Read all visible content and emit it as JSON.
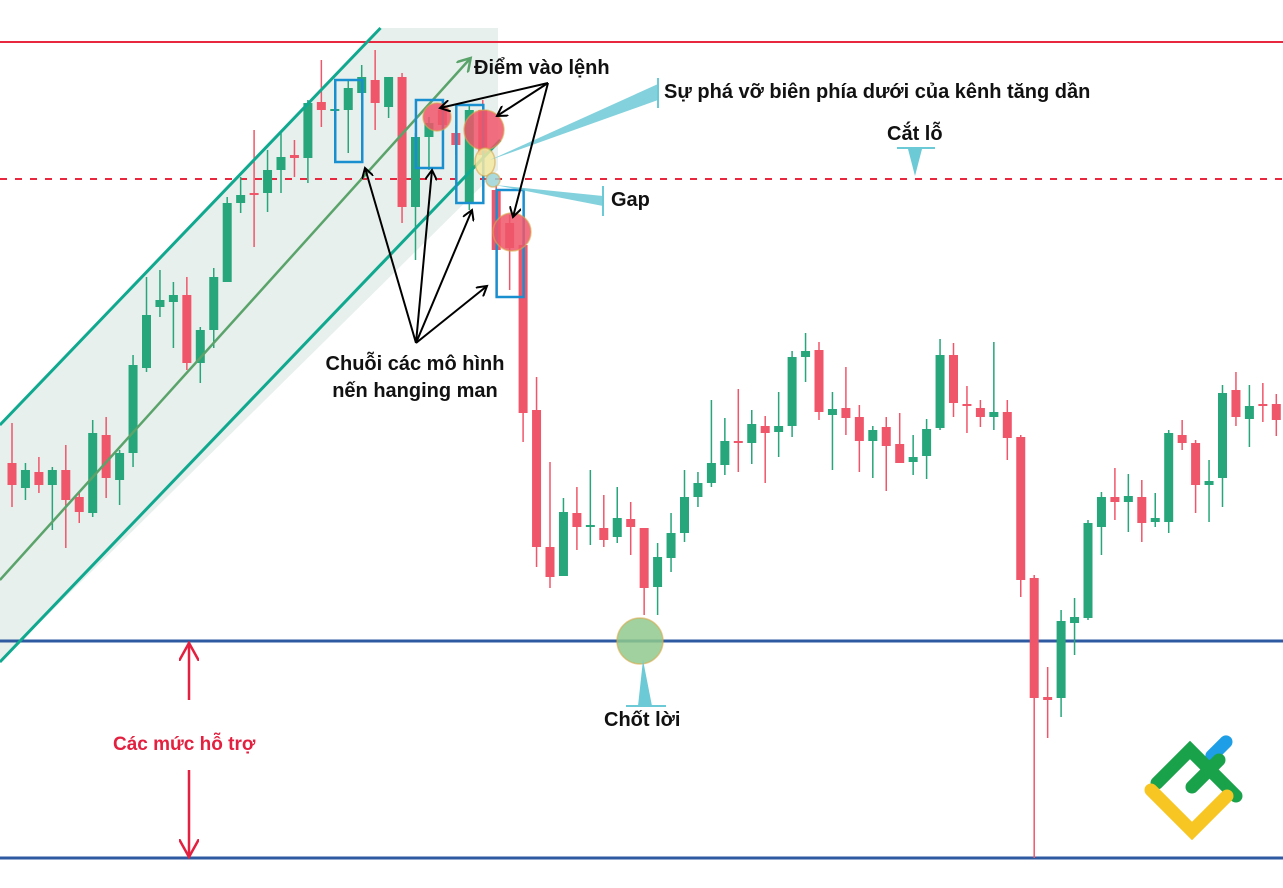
{
  "chart_data": {
    "type": "candlestick",
    "title": "",
    "xlabel": "",
    "ylabel": "",
    "ylim": [
      11.2,
      100
    ],
    "grid": false,
    "colors": {
      "up": "#26a67a",
      "down": "#f0566a",
      "channel": "#10a98f",
      "channel_mid": "#5aa36a",
      "channel_fill": "#e7f0ed",
      "resistance": "#e8283e",
      "support": "#2d5aa0",
      "box": "#1a8fd0",
      "callout": "#6cc9d6"
    },
    "candles_ohlc": [
      [
        53.7,
        57.7,
        49.3,
        51.5
      ],
      [
        51.2,
        53.7,
        50.0,
        53.0
      ],
      [
        52.8,
        54.3,
        50.7,
        51.5
      ],
      [
        51.5,
        53.3,
        47.0,
        53.0
      ],
      [
        53.0,
        55.5,
        45.2,
        50.0
      ],
      [
        50.3,
        50.7,
        47.7,
        48.8
      ],
      [
        48.7,
        58.0,
        48.3,
        56.7
      ],
      [
        56.5,
        58.3,
        50.2,
        52.2
      ],
      [
        52.0,
        55.0,
        49.5,
        54.7
      ],
      [
        54.7,
        64.5,
        53.3,
        63.5
      ],
      [
        63.2,
        72.3,
        62.8,
        68.5
      ],
      [
        69.3,
        73.0,
        68.3,
        70.0
      ],
      [
        69.8,
        71.8,
        65.2,
        70.5
      ],
      [
        70.5,
        72.3,
        63.0,
        63.7
      ],
      [
        63.7,
        67.3,
        61.7,
        67.0
      ],
      [
        67.0,
        73.2,
        65.2,
        72.3
      ],
      [
        71.8,
        80.3,
        71.8,
        79.7
      ],
      [
        79.7,
        82.3,
        78.7,
        80.5
      ],
      [
        80.7,
        87.0,
        75.3,
        80.5
      ],
      [
        80.7,
        85.0,
        78.8,
        83.0
      ],
      [
        83.0,
        86.7,
        80.7,
        84.3
      ],
      [
        84.5,
        86.0,
        82.3,
        84.2
      ],
      [
        84.2,
        90.0,
        81.7,
        89.7
      ],
      [
        89.8,
        94.0,
        87.3,
        89.0
      ],
      [
        89.0,
        89.5,
        88.5,
        89.1
      ],
      [
        89.0,
        92.0,
        84.7,
        91.2
      ],
      [
        90.7,
        93.5,
        90.0,
        92.3
      ],
      [
        92.0,
        95.0,
        87.0,
        89.7
      ],
      [
        89.3,
        92.3,
        88.2,
        92.3
      ],
      [
        92.3,
        92.7,
        77.7,
        79.3
      ],
      [
        79.3,
        86.7,
        74.0,
        86.3
      ],
      [
        86.3,
        88.3,
        83.0,
        87.7
      ],
      [
        89.0,
        90.0,
        87.5,
        87.5
      ],
      [
        86.7,
        87.5,
        84.5,
        85.5
      ],
      [
        79.7,
        89.5,
        79.0,
        89.0
      ],
      [
        89.0,
        90.0,
        83.0,
        84.5
      ],
      [
        81.0,
        81.5,
        70.3,
        75.0
      ],
      [
        77.7,
        78.5,
        71.0,
        75.2
      ],
      [
        75.5,
        76.0,
        55.8,
        58.7
      ],
      [
        59.0,
        62.3,
        43.3,
        45.3
      ],
      [
        45.3,
        53.8,
        41.2,
        42.3
      ],
      [
        42.4,
        50.2,
        42.4,
        48.8
      ],
      [
        48.7,
        51.3,
        45.0,
        47.3
      ],
      [
        47.4,
        53.0,
        45.5,
        47.5
      ],
      [
        47.2,
        50.5,
        45.3,
        46.0
      ],
      [
        46.3,
        51.3,
        45.7,
        48.2
      ],
      [
        48.1,
        49.8,
        44.5,
        47.3
      ],
      [
        47.2,
        47.2,
        38.5,
        41.2
      ],
      [
        41.3,
        45.7,
        38.5,
        44.3
      ],
      [
        44.2,
        48.7,
        42.8,
        46.7
      ],
      [
        46.7,
        53.0,
        45.8,
        50.3
      ],
      [
        50.3,
        52.8,
        49.3,
        51.7
      ],
      [
        51.7,
        60.0,
        51.3,
        53.7
      ],
      [
        53.5,
        58.2,
        52.5,
        55.9
      ],
      [
        55.9,
        61.1,
        52.8,
        55.7
      ],
      [
        55.7,
        59.0,
        53.6,
        57.6
      ],
      [
        57.4,
        58.4,
        51.7,
        56.7
      ],
      [
        56.8,
        60.8,
        54.3,
        57.4
      ],
      [
        57.4,
        64.9,
        56.3,
        64.3
      ],
      [
        64.3,
        66.7,
        61.8,
        64.9
      ],
      [
        65.0,
        65.8,
        58.0,
        58.8
      ],
      [
        58.5,
        60.8,
        53.0,
        59.1
      ],
      [
        59.2,
        63.3,
        56.5,
        58.2
      ],
      [
        58.3,
        59.5,
        52.8,
        55.9
      ],
      [
        55.9,
        57.4,
        52.2,
        57.0
      ],
      [
        57.3,
        58.3,
        50.9,
        55.4
      ],
      [
        55.6,
        58.7,
        53.7,
        53.7
      ],
      [
        53.8,
        56.5,
        52.5,
        54.3
      ],
      [
        54.4,
        58.1,
        52.1,
        57.1
      ],
      [
        57.2,
        66.1,
        57.0,
        64.5
      ],
      [
        64.5,
        65.7,
        58.3,
        59.7
      ],
      [
        59.6,
        61.4,
        56.7,
        59.4
      ],
      [
        59.2,
        60.0,
        57.3,
        58.3
      ],
      [
        58.3,
        65.8,
        57.0,
        58.8
      ],
      [
        58.8,
        60.0,
        54.0,
        56.2
      ],
      [
        56.3,
        56.5,
        40.3,
        42.0
      ],
      [
        42.2,
        42.5,
        14.2,
        30.2
      ],
      [
        30.3,
        33.3,
        26.2,
        30.0
      ],
      [
        30.2,
        39.0,
        28.3,
        37.9
      ],
      [
        37.7,
        40.2,
        34.5,
        38.3
      ],
      [
        38.2,
        48.0,
        38.0,
        47.7
      ],
      [
        47.3,
        50.8,
        44.5,
        50.3
      ],
      [
        50.3,
        53.2,
        48.0,
        49.8
      ],
      [
        49.8,
        52.6,
        46.8,
        50.4
      ],
      [
        50.3,
        52.0,
        45.8,
        47.7
      ],
      [
        47.8,
        50.7,
        47.3,
        48.2
      ],
      [
        47.8,
        57.0,
        46.7,
        56.7
      ],
      [
        56.5,
        58.0,
        55.0,
        55.7
      ],
      [
        55.7,
        56.0,
        48.7,
        51.5
      ],
      [
        51.5,
        54.0,
        47.8,
        51.9
      ],
      [
        52.2,
        61.5,
        49.3,
        60.7
      ],
      [
        61.0,
        62.8,
        57.4,
        58.3
      ],
      [
        58.1,
        61.5,
        55.3,
        59.4
      ],
      [
        59.6,
        61.7,
        57.8,
        59.5
      ],
      [
        59.6,
        60.6,
        56.4,
        58.0
      ]
    ],
    "horizontal_levels": [
      {
        "role": "resistance",
        "price": 95.8,
        "style": "solid"
      },
      {
        "role": "stop-loss",
        "price": 82.1,
        "style": "dashed"
      },
      {
        "role": "support",
        "price": 35.9,
        "style": "solid"
      },
      {
        "role": "support",
        "price": 14.2,
        "style": "solid"
      }
    ],
    "channel": {
      "upper": [
        [
          -0.9,
          57.5
        ],
        [
          27.4,
          97.2
        ]
      ],
      "middle": [
        [
          -0.9,
          42.0
        ],
        [
          34.1,
          94.2
        ]
      ],
      "lower": [
        [
          -0.9,
          33.8
        ],
        [
          36.3,
          86.0
        ]
      ]
    },
    "hanging_man_boxes_candle_index": [
      25,
      31,
      34,
      37
    ],
    "annotations": {
      "entry": "Điểm vào lệnh",
      "breakout": "Sự phá vỡ biên phía dưới của kênh tăng dần",
      "stop_loss": "Cắt lỗ",
      "gap": "Gap",
      "hanging_man_line1": "Chuỗi các mô hình",
      "hanging_man_line2": "nến hanging man",
      "take_profit": "Chốt lời",
      "support_levels": "Các mức hỗ trợ"
    }
  },
  "logo": {
    "name": "litefinance-logo",
    "colors": [
      "#1aa24a",
      "#f7c623",
      "#1e9ee6"
    ]
  }
}
